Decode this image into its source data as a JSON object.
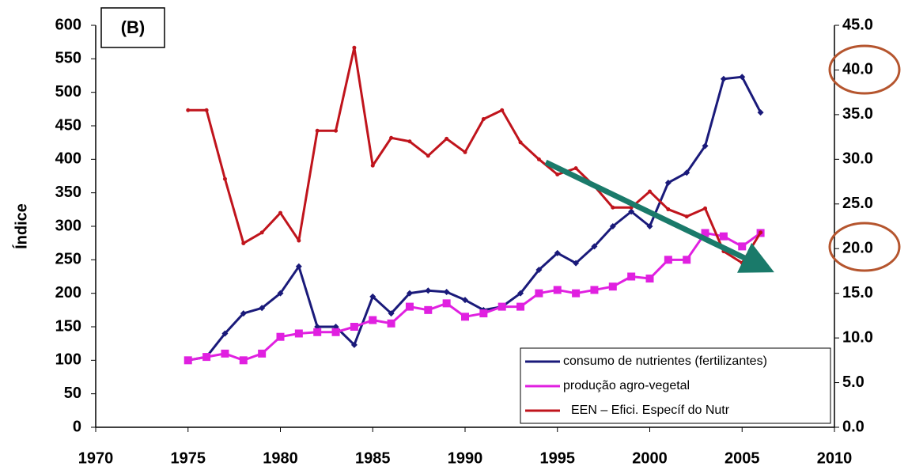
{
  "chart_data": {
    "type": "line",
    "annotation": "(B)",
    "y_label": "Índice",
    "x": [
      1975,
      1976,
      1977,
      1978,
      1979,
      1980,
      1981,
      1982,
      1983,
      1984,
      1985,
      1986,
      1987,
      1988,
      1989,
      1990,
      1991,
      1992,
      1993,
      1994,
      1995,
      1996,
      1997,
      1998,
      1999,
      2000,
      2001,
      2002,
      2003,
      2004,
      2005,
      2006
    ],
    "xlim": [
      1970,
      2010
    ],
    "xticks": [
      1970,
      1975,
      1980,
      1985,
      1990,
      1995,
      2000,
      2005,
      2010
    ],
    "ylim": [
      0,
      600
    ],
    "yticks": [
      0,
      50,
      100,
      150,
      200,
      250,
      300,
      350,
      400,
      450,
      500,
      550,
      600
    ],
    "y2lim": [
      0,
      45
    ],
    "y2ticks": [
      {
        "value": 0,
        "label": "0.0"
      },
      {
        "value": 5,
        "label": "5.0"
      },
      {
        "value": 10,
        "label": "10.0"
      },
      {
        "value": 15,
        "label": "15.0"
      },
      {
        "value": 20,
        "label": "20.0"
      },
      {
        "value": 25,
        "label": "25.0"
      },
      {
        "value": 30,
        "label": "30.0"
      },
      {
        "value": 35,
        "label": "35.0"
      },
      {
        "value": 40,
        "label": "40.0"
      },
      {
        "value": 45,
        "label": "45.0"
      }
    ],
    "series": [
      {
        "name": "consumo de nutrientes (fertilizantes)",
        "color": "#1a1a7a",
        "marker": "diamond",
        "values": [
          100,
          105,
          140,
          170,
          178,
          200,
          240,
          150,
          150,
          123,
          195,
          170,
          200,
          204,
          202,
          190,
          175,
          180,
          200,
          235,
          260,
          245,
          270,
          300,
          322,
          300,
          365,
          380,
          420,
          520,
          523,
          470
        ]
      },
      {
        "name": "produção agro-vegetal",
        "color": "#e020e0",
        "marker": "square",
        "values": [
          100,
          105,
          110,
          100,
          110,
          135,
          140,
          142,
          142,
          150,
          160,
          155,
          180,
          175,
          185,
          165,
          170,
          180,
          180,
          200,
          205,
          200,
          205,
          210,
          225,
          222,
          250,
          250,
          290,
          285,
          270,
          290
        ]
      },
      {
        "name": "EEN – Efici. Específ do Nutr",
        "color": "#c0141c",
        "marker": "dot",
        "axis": "y2",
        "values": [
          35.5,
          35.5,
          27.8,
          20.6,
          21.8,
          24.0,
          20.9,
          33.2,
          33.2,
          42.5,
          29.3,
          32.4,
          32.0,
          30.4,
          32.3,
          30.8,
          34.5,
          35.5,
          31.9,
          30.0,
          28.3,
          29.0,
          27.0,
          24.6,
          24.6,
          26.4,
          24.4,
          23.6,
          24.5,
          19.7,
          18.4,
          21.8
        ]
      }
    ]
  }
}
